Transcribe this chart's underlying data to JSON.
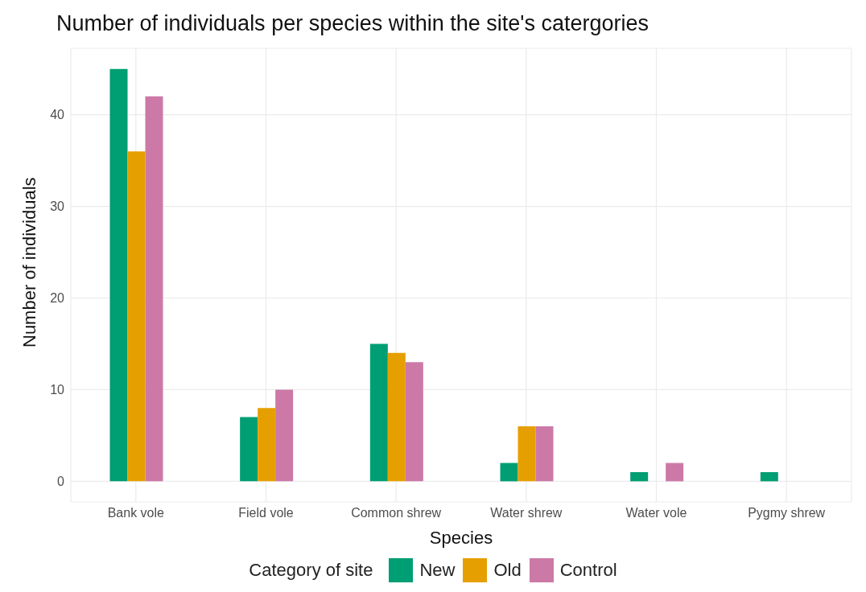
{
  "chart_data": {
    "type": "bar",
    "title": "Number of individuals per species within the site's catergories",
    "xlabel": "Species",
    "ylabel": "Number of individuals",
    "legend_title": "Category of site",
    "categories": [
      "Bank vole",
      "Field vole",
      "Common shrew",
      "Water shrew",
      "Water vole",
      "Pygmy shrew"
    ],
    "series": [
      {
        "name": "New",
        "color": "#009e73",
        "values": [
          45,
          7,
          15,
          2,
          1,
          1
        ]
      },
      {
        "name": "Old",
        "color": "#e69f00",
        "values": [
          36,
          8,
          14,
          6,
          0,
          0
        ]
      },
      {
        "name": "Control",
        "color": "#cc79a7",
        "values": [
          42,
          10,
          13,
          6,
          2,
          0
        ]
      }
    ],
    "ylim": [
      -2.25,
      47.25
    ],
    "yticks": [
      0,
      10,
      20,
      30,
      40
    ],
    "grid": true,
    "legend": "bottom"
  }
}
